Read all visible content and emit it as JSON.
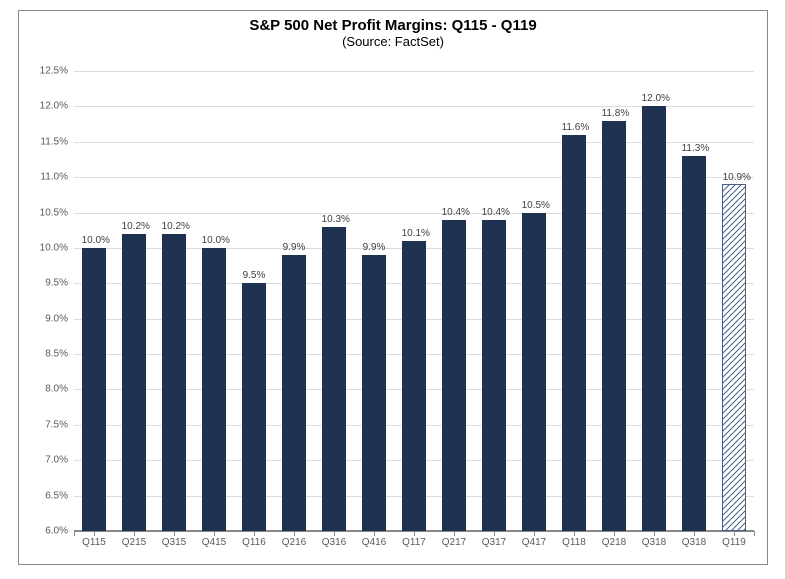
{
  "chart": {
    "type": "bar",
    "title": "S&P 500 Net Profit Margins: Q115 - Q119",
    "subtitle": "(Source: FactSet)",
    "title_fontsize": 15,
    "subtitle_fontsize": 13,
    "background_color": "#ffffff",
    "border_color": "#888888",
    "grid_color": "#dcdcdc",
    "y_baseline_color": "#888888",
    "axis_label_color": "#595959",
    "data_label_color": "#404040",
    "tick_fontsize": 10,
    "data_label_fontsize": 10,
    "ylim": [
      6.0,
      12.5
    ],
    "ytick_step": 0.5,
    "ytick_format": "{v}%",
    "bar_width_ratio": 0.62,
    "bar_color_solid": "#1f3151",
    "bar_hatched_stroke": "#4a5f85",
    "bar_hatched_bg": "#ffffff",
    "categories": [
      "Q115",
      "Q215",
      "Q315",
      "Q415",
      "Q116",
      "Q216",
      "Q316",
      "Q416",
      "Q117",
      "Q217",
      "Q317",
      "Q417",
      "Q118",
      "Q218",
      "Q318",
      "Q318",
      "Q119"
    ],
    "values": [
      10.0,
      10.2,
      10.2,
      10.0,
      9.5,
      9.9,
      10.3,
      9.9,
      10.1,
      10.4,
      10.4,
      10.5,
      11.6,
      11.8,
      12.0,
      11.3,
      10.9
    ],
    "value_labels": [
      "10.0%",
      "10.2%",
      "10.2%",
      "10.0%",
      "9.5%",
      "9.9%",
      "10.3%",
      "9.9%",
      "10.1%",
      "10.4%",
      "10.4%",
      "10.5%",
      "11.6%",
      "11.8%",
      "12.0%",
      "11.3%",
      "10.9%"
    ],
    "bar_styles": [
      "solid",
      "solid",
      "solid",
      "solid",
      "solid",
      "solid",
      "solid",
      "solid",
      "solid",
      "solid",
      "solid",
      "solid",
      "solid",
      "solid",
      "solid",
      "solid",
      "hatched"
    ]
  }
}
